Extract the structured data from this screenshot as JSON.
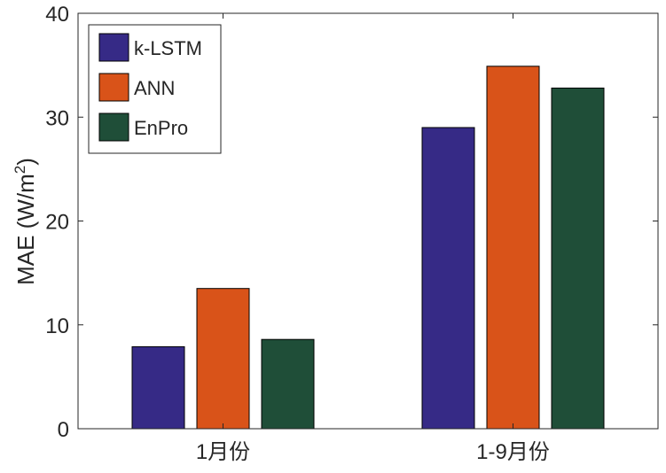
{
  "chart_data": {
    "type": "bar",
    "title": "",
    "xlabel": "",
    "ylabel": "MAE (W/m",
    "ylabel_superscript": "2",
    "ylabel_suffix": ")",
    "categories": [
      "1月份",
      "1-9月份"
    ],
    "series": [
      {
        "name": "k-LSTM",
        "values": [
          7.9,
          29.0
        ],
        "color": "#362a86"
      },
      {
        "name": "ANN",
        "values": [
          13.5,
          34.9
        ],
        "color": "#d95319"
      },
      {
        "name": "EnPro",
        "values": [
          8.6,
          32.8
        ],
        "color": "#1f4e38"
      }
    ],
    "ylim": [
      0,
      40
    ],
    "yticks": [
      "0",
      "10",
      "20",
      "30",
      "40"
    ],
    "grid": false,
    "legend_position": "top-left"
  }
}
